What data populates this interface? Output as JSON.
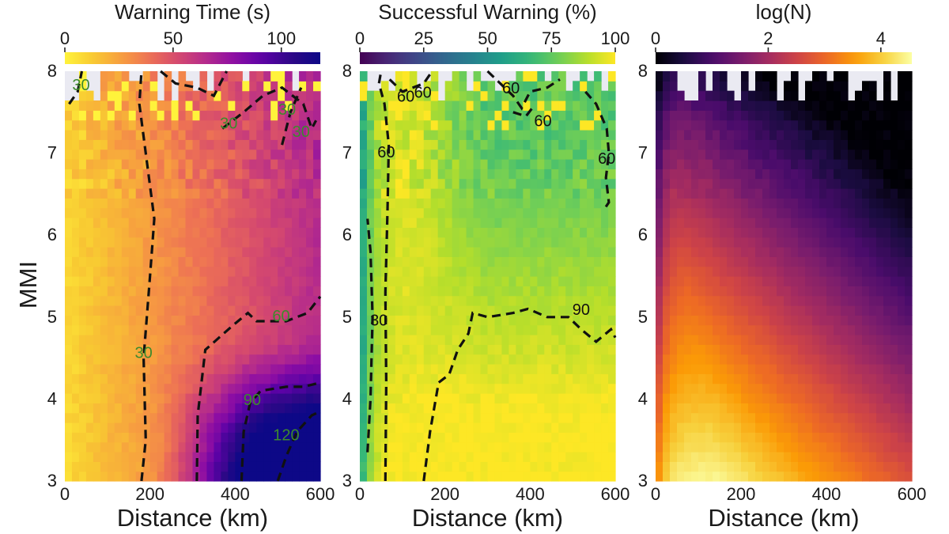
{
  "figure": {
    "ylabel": "MMI"
  },
  "colors": {
    "panel_background": "#eaeaf2",
    "contour_line": "#111111",
    "contour_label_left": "#3d8a2d",
    "contour_label_middle": "#111111"
  },
  "chart_data": [
    {
      "type": "heatmap",
      "title": "Warning Time (s)",
      "colormap": "plasma (reversed)",
      "colorbar_ticks": [
        0,
        50,
        100
      ],
      "colorbar_range": [
        0,
        118
      ],
      "xlabel": "Distance (km)",
      "ylabel": "MMI",
      "xlim": [
        0,
        600
      ],
      "ylim": [
        3,
        8
      ],
      "xticks": [
        0,
        200,
        400,
        600
      ],
      "yticks": [
        3,
        4,
        5,
        6,
        7,
        8
      ],
      "contours": [
        {
          "level": "30",
          "points": [
            [
              180,
              3
            ],
            [
              190,
              3.5
            ],
            [
              185,
              4.5
            ],
            [
              200,
              5.5
            ],
            [
              210,
              6.2
            ],
            [
              190,
              7
            ],
            [
              175,
              7.6
            ],
            [
              180,
              8
            ]
          ]
        },
        {
          "level": "30",
          "points": [
            [
              10,
              7.6
            ],
            [
              30,
              7.75
            ],
            [
              40,
              8
            ]
          ]
        },
        {
          "level": "30",
          "points": [
            [
              225,
              8
            ],
            [
              260,
              7.85
            ],
            [
              310,
              7.8
            ],
            [
              350,
              7.7
            ],
            [
              365,
              7.85
            ],
            [
              380,
              8
            ]
          ]
        },
        {
          "level": "30",
          "points": [
            [
              370,
              7.3
            ],
            [
              420,
              7.5
            ],
            [
              465,
              7.7
            ],
            [
              510,
              7.8
            ],
            [
              560,
              7.6
            ],
            [
              580,
              7.3
            ],
            [
              590,
              7.4
            ]
          ]
        },
        {
          "level": "30",
          "points": [
            [
              510,
              7.1
            ],
            [
              530,
              7.5
            ],
            [
              555,
              7.8
            ]
          ]
        },
        {
          "level": "60",
          "points": [
            [
              310,
              3
            ],
            [
              312,
              3.8
            ],
            [
              330,
              4.6
            ],
            [
              395,
              4.9
            ],
            [
              430,
              5.05
            ],
            [
              450,
              4.95
            ],
            [
              520,
              4.95
            ],
            [
              570,
              5.05
            ],
            [
              600,
              5.25
            ]
          ]
        },
        {
          "level": "90",
          "points": [
            [
              415,
              3
            ],
            [
              420,
              3.6
            ],
            [
              435,
              3.95
            ],
            [
              460,
              4.1
            ],
            [
              520,
              4.15
            ],
            [
              560,
              4.15
            ],
            [
              600,
              4.2
            ]
          ]
        },
        {
          "level": "120",
          "points": [
            [
              500,
              3
            ],
            [
              520,
              3.3
            ],
            [
              545,
              3.6
            ],
            [
              580,
              3.8
            ],
            [
              600,
              3.85
            ]
          ]
        }
      ],
      "contour_labels": [
        {
          "text": "30",
          "x": 185,
          "y": 4.55
        },
        {
          "text": "30",
          "x": 38,
          "y": 7.82
        },
        {
          "text": "30",
          "x": 385,
          "y": 7.35
        },
        {
          "text": "30",
          "x": 522,
          "y": 7.52
        },
        {
          "text": "30",
          "x": 555,
          "y": 7.25
        },
        {
          "text": "60",
          "x": 508,
          "y": 5.0
        },
        {
          "text": "90",
          "x": 440,
          "y": 3.98
        },
        {
          "text": "120",
          "x": 520,
          "y": 3.55
        }
      ]
    },
    {
      "type": "heatmap",
      "title": "Successful Warning (%)",
      "colormap": "viridis",
      "colorbar_ticks": [
        0,
        25,
        50,
        75,
        100
      ],
      "colorbar_range": [
        0,
        100
      ],
      "xlabel": "Distance (km)",
      "xlim": [
        0,
        600
      ],
      "ylim": [
        3,
        8
      ],
      "xticks": [
        0,
        200,
        400,
        600
      ],
      "yticks": [
        3,
        4,
        5,
        6,
        7,
        8
      ],
      "contours": [
        {
          "level": "30",
          "points": [
            [
              18,
              3.35
            ],
            [
              25,
              4.0
            ],
            [
              30,
              5.0
            ],
            [
              25,
              5.8
            ],
            [
              18,
              6.2
            ]
          ]
        },
        {
          "level": "60",
          "points": [
            [
              60,
              3.0
            ],
            [
              62,
              4.2
            ],
            [
              60,
              5.3
            ],
            [
              65,
              6.3
            ],
            [
              68,
              7.1
            ],
            [
              58,
              7.6
            ],
            [
              45,
              7.85
            ],
            [
              50,
              8
            ]
          ]
        },
        {
          "level": "60",
          "points": [
            [
              70,
              7.9
            ],
            [
              100,
              7.75
            ],
            [
              150,
              7.85
            ],
            [
              170,
              8
            ]
          ]
        },
        {
          "level": "60",
          "points": [
            [
              300,
              8
            ],
            [
              330,
              7.85
            ],
            [
              360,
              7.7
            ],
            [
              380,
              7.55
            ],
            [
              400,
              7.75
            ],
            [
              440,
              7.8
            ],
            [
              470,
              7.9
            ]
          ]
        },
        {
          "level": "60",
          "points": [
            [
              360,
              7.5
            ],
            [
              390,
              7.45
            ],
            [
              405,
              7.55
            ]
          ]
        },
        {
          "level": "60",
          "points": [
            [
              530,
              7.75
            ],
            [
              555,
              7.6
            ],
            [
              580,
              7.3
            ],
            [
              585,
              7.0
            ],
            [
              578,
              6.7
            ],
            [
              585,
              6.4
            ],
            [
              572,
              6.3
            ]
          ]
        },
        {
          "level": "90",
          "points": [
            [
              150,
              3.0
            ],
            [
              165,
              3.6
            ],
            [
              185,
              4.2
            ],
            [
              210,
              4.3
            ],
            [
              230,
              4.6
            ],
            [
              255,
              4.8
            ],
            [
              265,
              5.05
            ],
            [
              300,
              5.0
            ],
            [
              360,
              5.05
            ],
            [
              395,
              5.1
            ],
            [
              440,
              5.0
            ],
            [
              490,
              5.0
            ],
            [
              520,
              4.85
            ],
            [
              555,
              4.7
            ],
            [
              590,
              4.85
            ],
            [
              600,
              4.75
            ]
          ]
        }
      ],
      "contour_labels": [
        {
          "text": "60",
          "x": 62,
          "y": 7.0
        },
        {
          "text": "60",
          "x": 108,
          "y": 7.68
        },
        {
          "text": "60",
          "x": 148,
          "y": 7.73
        },
        {
          "text": "60",
          "x": 355,
          "y": 7.78
        },
        {
          "text": "60",
          "x": 430,
          "y": 7.38
        },
        {
          "text": "60",
          "x": 580,
          "y": 6.92
        },
        {
          "text": "30",
          "x": 45,
          "y": 4.95
        },
        {
          "text": "90",
          "x": 520,
          "y": 5.08
        }
      ]
    },
    {
      "type": "heatmap",
      "title": "log(N)",
      "colormap": "inferno",
      "colorbar_ticks": [
        0,
        2,
        4
      ],
      "colorbar_range": [
        0,
        4.55
      ],
      "xlabel": "Distance (km)",
      "xlim": [
        0,
        600
      ],
      "ylim": [
        3,
        8
      ],
      "xticks": [
        0,
        200,
        400,
        600
      ],
      "yticks": [
        3,
        4,
        5,
        6,
        7,
        8
      ],
      "contours": [],
      "contour_labels": []
    }
  ]
}
